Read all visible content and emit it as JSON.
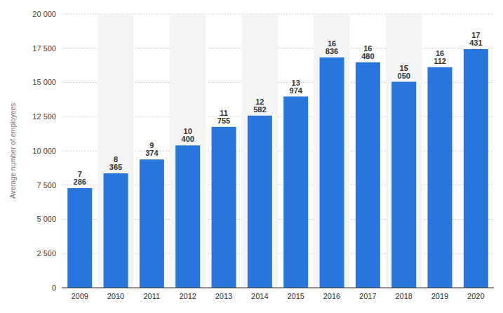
{
  "chart_data": {
    "type": "bar",
    "y_label": "Average number of employees",
    "categories": [
      "2009",
      "2010",
      "2011",
      "2012",
      "2013",
      "2014",
      "2015",
      "2016",
      "2017",
      "2018",
      "2019",
      "2020"
    ],
    "values": [
      7286,
      8365,
      9374,
      10400,
      11755,
      12582,
      13974,
      16836,
      16480,
      15050,
      16112,
      17431
    ],
    "value_labels": [
      "7 286",
      "8 365",
      "9 374",
      "10 400",
      "11 755",
      "12 582",
      "13 974",
      "16 836",
      "16 480",
      "15 050",
      "16 112",
      "17 431"
    ],
    "data_labels": true,
    "color": "#2876dd",
    "ylim": [
      0,
      20000
    ],
    "yticks": [
      {
        "value": 0,
        "label": "0"
      },
      {
        "value": 2500,
        "label": "2 500"
      },
      {
        "value": 5000,
        "label": "5 000"
      },
      {
        "value": 7500,
        "label": "7 500"
      },
      {
        "value": 10000,
        "label": "10 000"
      },
      {
        "value": 12500,
        "label": "12 500"
      },
      {
        "value": 15000,
        "label": "15 000"
      },
      {
        "value": 17500,
        "label": "17 500"
      },
      {
        "value": 20000,
        "label": "20 000"
      }
    ],
    "grid": true
  }
}
